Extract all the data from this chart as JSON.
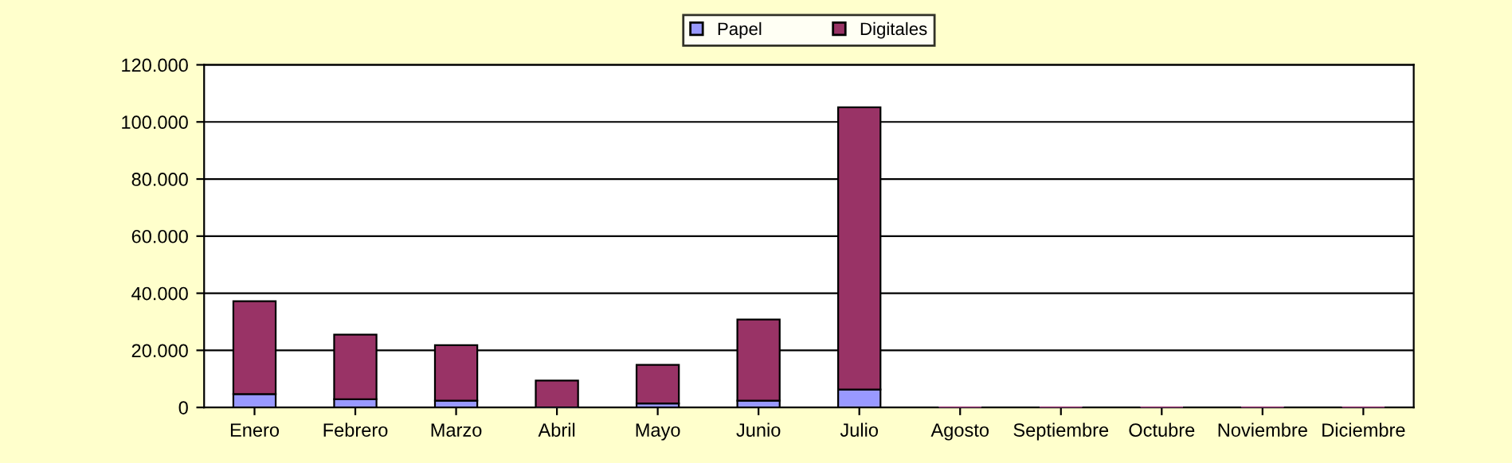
{
  "chart_data": {
    "type": "bar",
    "stacked": true,
    "categories": [
      "Enero",
      "Febrero",
      "Marzo",
      "Abril",
      "Mayo",
      "Junio",
      "Julio",
      "Agosto",
      "Septiembre",
      "Octubre",
      "Noviembre",
      "Diciembre"
    ],
    "series": [
      {
        "name": "Papel",
        "color": "#9999ff",
        "values": [
          4700,
          2900,
          2400,
          null,
          1400,
          2400,
          6300,
          0,
          0,
          0,
          0,
          0
        ]
      },
      {
        "name": "Digitales",
        "color": "#993366",
        "values": [
          32500,
          22600,
          19400,
          9400,
          13500,
          28400,
          98800,
          0,
          0,
          0,
          0,
          0
        ]
      }
    ],
    "ylim": [
      0,
      120000
    ],
    "yticks": [
      {
        "value": 0,
        "label": "0"
      },
      {
        "value": 20000,
        "label": "20.000"
      },
      {
        "value": 40000,
        "label": "40.000"
      },
      {
        "value": 60000,
        "label": "60.000"
      },
      {
        "value": 80000,
        "label": "80.000"
      },
      {
        "value": 100000,
        "label": "100.000"
      },
      {
        "value": 120000,
        "label": "120.000"
      }
    ],
    "grid": "y",
    "legend": "top"
  }
}
